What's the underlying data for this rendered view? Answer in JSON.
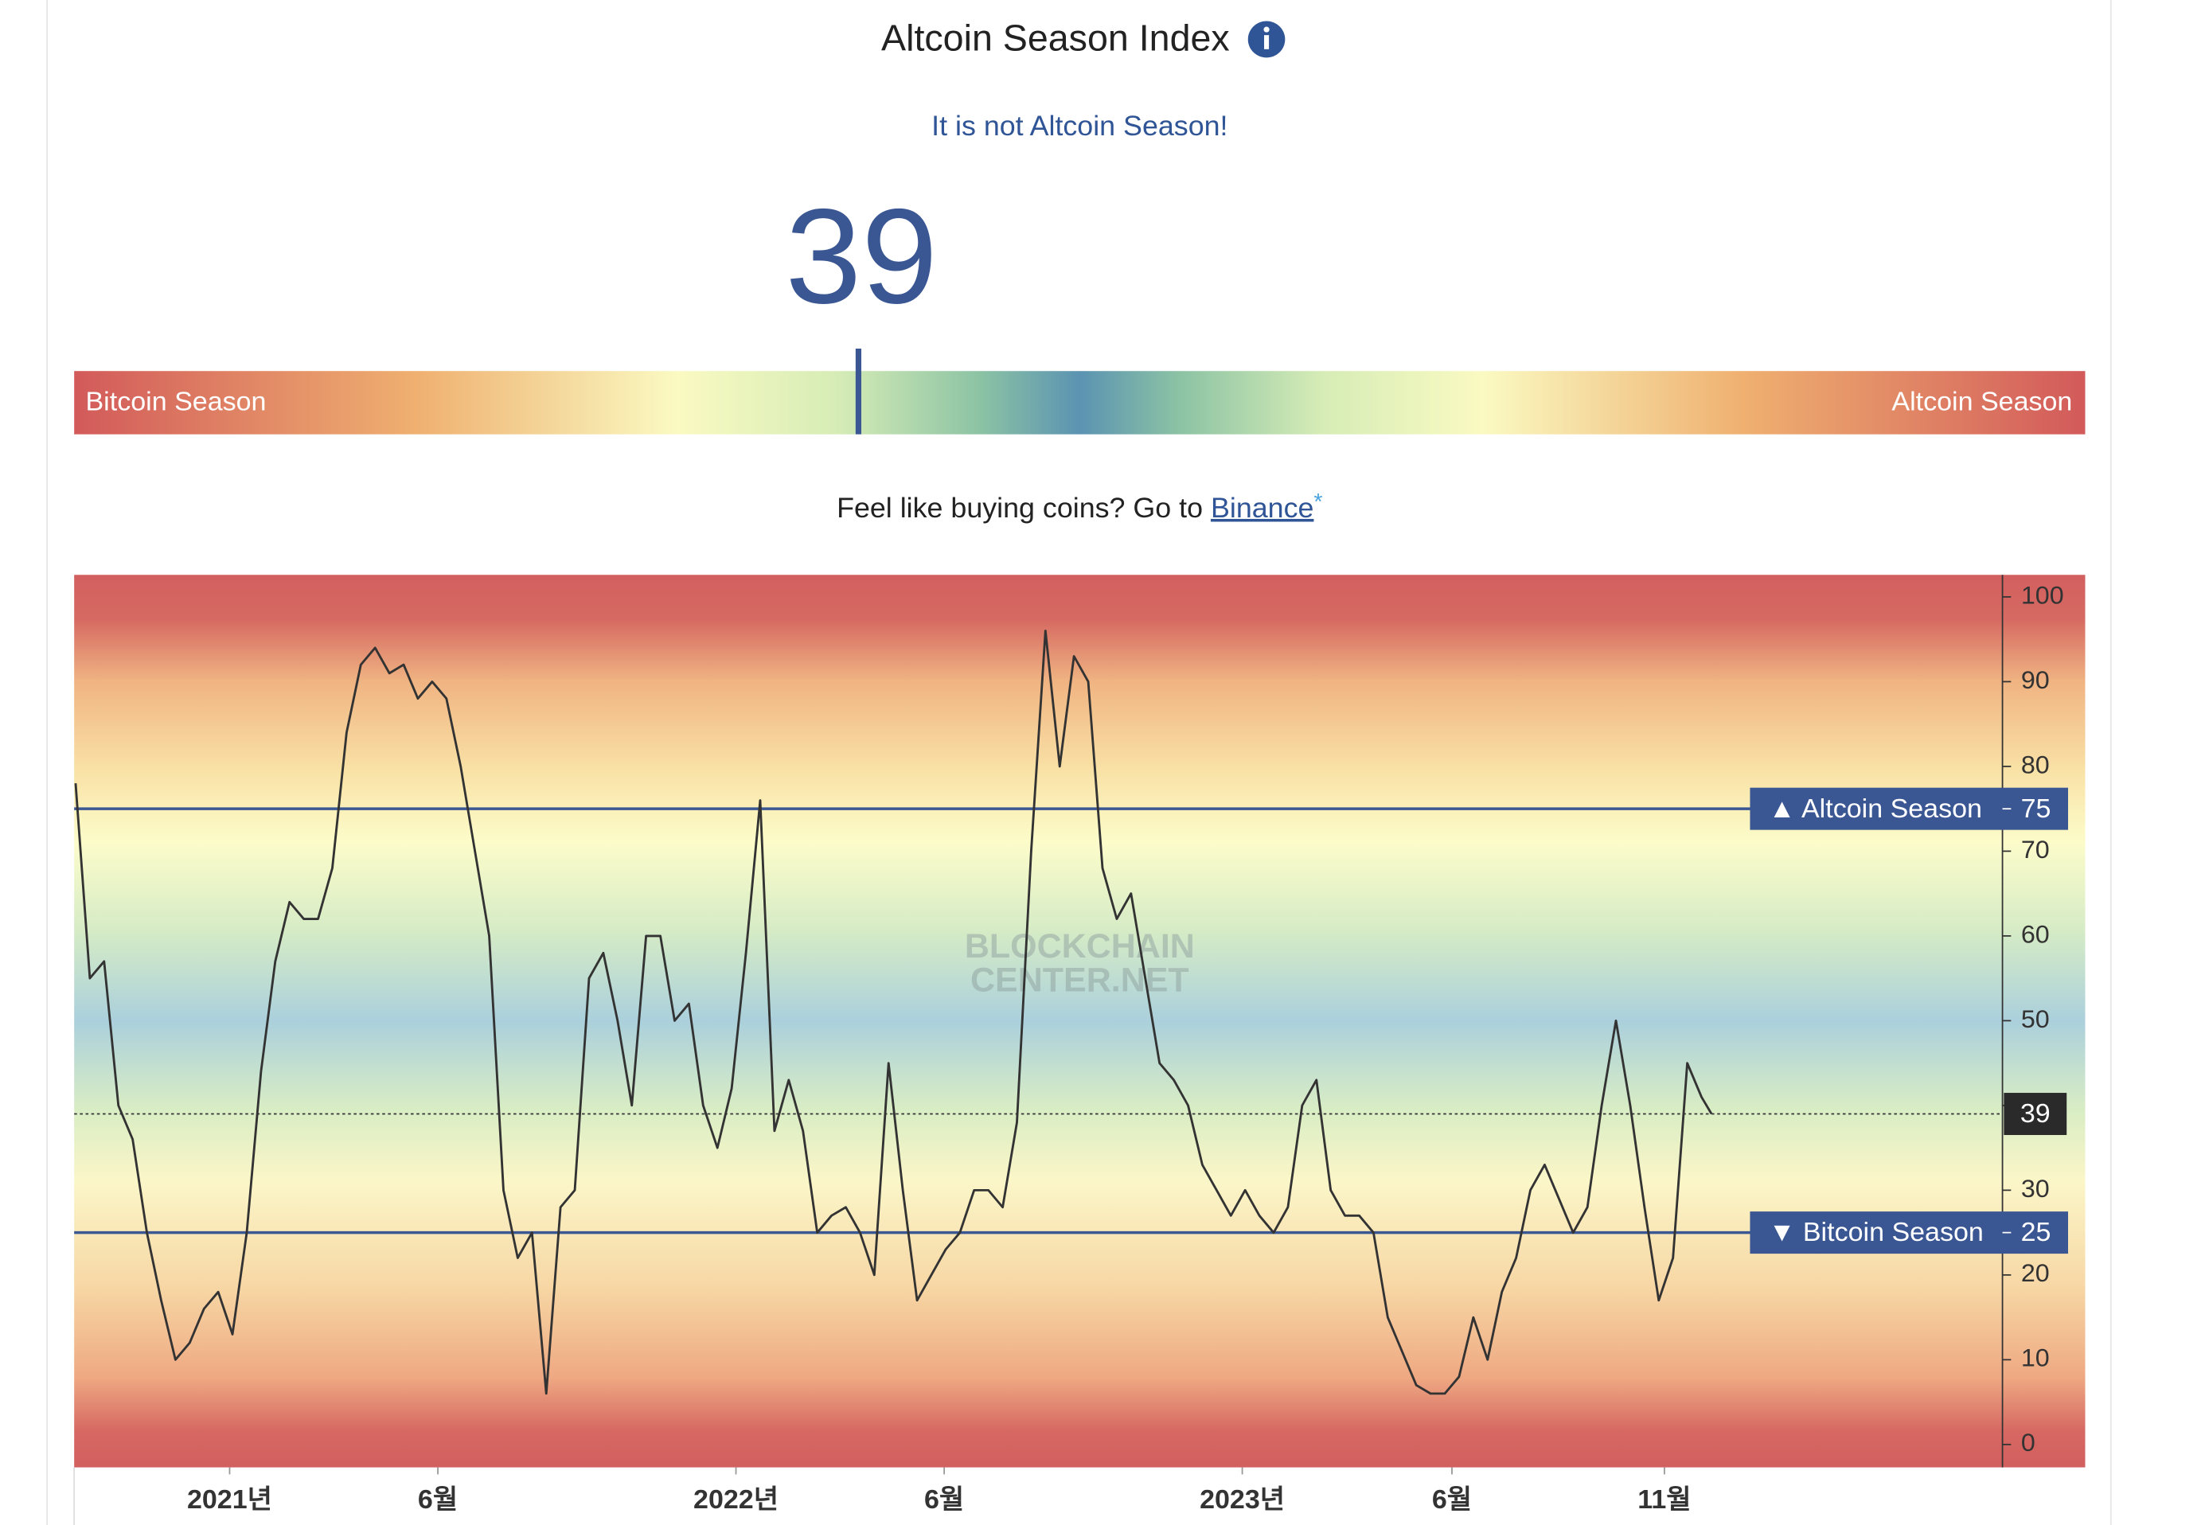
{
  "header": {
    "title": "Altcoin Season Index",
    "status": "It is not Altcoin Season!"
  },
  "gauge": {
    "value": 39,
    "lim": [
      0,
      100
    ],
    "left_label": "Bitcoin Season",
    "right_label": "Altcoin Season"
  },
  "promo": {
    "text": "Feel like buying coins? Go to ",
    "link": "Binance",
    "mark": "*"
  },
  "chart_data": {
    "type": "line",
    "watermark": [
      "BLOCKCHAIN",
      "CENTER.NET"
    ],
    "x": [
      0,
      10,
      20,
      30,
      40,
      50,
      60,
      70,
      80,
      90,
      100,
      110,
      120,
      130,
      140,
      150,
      160,
      170,
      180,
      190,
      200,
      210,
      220,
      230,
      240,
      250,
      260,
      270,
      280,
      290,
      300,
      310,
      320,
      330,
      340,
      350,
      360,
      370,
      380,
      390,
      400,
      410,
      420,
      430,
      440,
      450,
      460,
      470,
      480,
      490,
      500,
      510,
      520,
      530,
      540,
      550,
      560,
      570,
      580,
      590,
      600,
      610,
      620,
      630,
      640,
      650,
      660,
      670,
      680,
      690,
      700,
      710,
      720,
      730,
      740,
      750,
      760,
      770,
      780,
      790,
      800,
      810,
      820,
      830,
      840,
      850,
      860,
      870,
      880,
      890,
      900,
      910,
      920,
      930,
      940,
      950,
      960,
      970,
      980,
      990,
      1000,
      1010,
      1020,
      1030,
      1040,
      1050,
      1060,
      1070,
      1080,
      1090,
      1100,
      1110,
      1120,
      1130,
      1140,
      1147
    ],
    "series": [
      {
        "name": "Altcoin Season Index",
        "color": "#333333",
        "values": [
          78,
          55,
          57,
          40,
          36,
          25,
          17,
          10,
          12,
          16,
          18,
          13,
          25,
          44,
          57,
          64,
          62,
          62,
          68,
          84,
          92,
          94,
          91,
          92,
          88,
          90,
          88,
          80,
          70,
          60,
          30,
          22,
          25,
          6,
          28,
          30,
          55,
          58,
          50,
          40,
          60,
          60,
          50,
          52,
          40,
          35,
          42,
          58,
          76,
          37,
          43,
          37,
          25,
          27,
          28,
          25,
          20,
          45,
          30,
          17,
          20,
          23,
          25,
          30,
          30,
          28,
          38,
          70,
          96,
          80,
          93,
          90,
          68,
          62,
          65,
          55,
          45,
          43,
          40,
          33,
          30,
          27,
          30,
          27,
          25,
          28,
          40,
          43,
          30,
          27,
          27,
          25,
          15,
          11,
          7,
          6,
          6,
          8,
          15,
          10,
          18,
          22,
          30,
          33,
          29,
          25,
          28,
          40,
          50,
          40,
          28,
          17,
          22,
          45,
          41,
          39
        ]
      }
    ],
    "current": 39,
    "xlim": [
      -1,
      1351
    ],
    "xticks": [
      {
        "value": 108,
        "label": "2021년"
      },
      {
        "value": 254,
        "label": "6월"
      },
      {
        "value": 463,
        "label": "2022년"
      },
      {
        "value": 609,
        "label": "6월"
      },
      {
        "value": 818,
        "label": "2023년"
      },
      {
        "value": 965,
        "label": "6월"
      },
      {
        "value": 1114,
        "label": "11월"
      }
    ],
    "ylim": [
      -2.7,
      102.6
    ],
    "yticks": [
      0,
      10,
      20,
      30,
      40,
      50,
      60,
      70,
      80,
      90,
      100
    ],
    "reference_lines": [
      {
        "label": "▲ Altcoin Season",
        "value": 75
      },
      {
        "label": "▼ Bitcoin Season",
        "value": 25
      }
    ],
    "reference_color": "#3a5794"
  }
}
